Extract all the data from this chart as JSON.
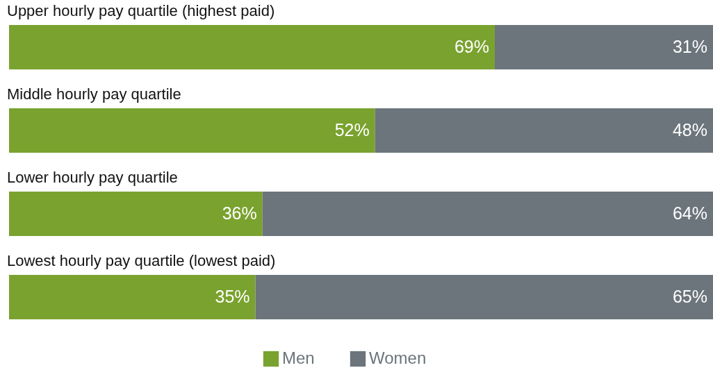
{
  "chart_data": {
    "type": "bar",
    "orientation": "horizontal",
    "stacked": true,
    "categories": [
      "Upper hourly pay quartile (highest paid)",
      "Middle hourly pay quartile",
      "Lower hourly pay quartile",
      "Lowest hourly pay quartile (lowest paid)"
    ],
    "series": [
      {
        "name": "Men",
        "color": "#7aa22f",
        "values": [
          69,
          52,
          36,
          35
        ],
        "value_labels": [
          "69%",
          "52%",
          "36%",
          "35%"
        ]
      },
      {
        "name": "Women",
        "color": "#6b757b",
        "values": [
          31,
          48,
          64,
          65
        ],
        "value_labels": [
          "31%",
          "48%",
          "64%",
          "65%"
        ]
      }
    ],
    "xlim": [
      0,
      100
    ],
    "tick_labels": "y",
    "legend": "bottom"
  }
}
